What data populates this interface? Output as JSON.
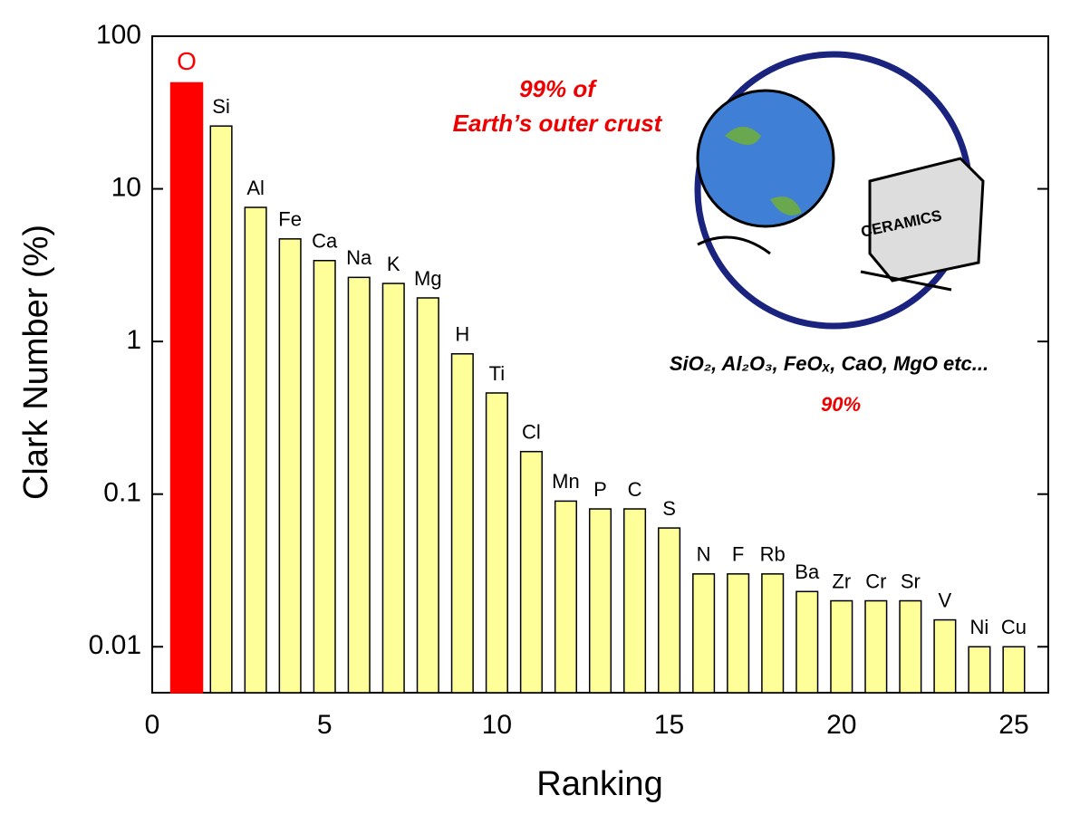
{
  "chart_data": {
    "type": "bar",
    "x_label": "Ranking",
    "y_label": "Clark Number (%)",
    "x": [
      1,
      2,
      3,
      4,
      5,
      6,
      7,
      8,
      9,
      10,
      11,
      12,
      13,
      14,
      15,
      16,
      17,
      18,
      19,
      20,
      21,
      22,
      23,
      24,
      25
    ],
    "categories": [
      "O",
      "Si",
      "Al",
      "Fe",
      "Ca",
      "Na",
      "K",
      "Mg",
      "H",
      "Ti",
      "Cl",
      "Mn",
      "P",
      "C",
      "S",
      "N",
      "F",
      "Rb",
      "Ba",
      "Zr",
      "Cr",
      "Sr",
      "V",
      "Ni",
      "Cu"
    ],
    "values": [
      49.5,
      25.8,
      7.56,
      4.7,
      3.39,
      2.63,
      2.4,
      1.93,
      0.83,
      0.46,
      0.19,
      0.09,
      0.08,
      0.08,
      0.06,
      0.03,
      0.03,
      0.03,
      0.023,
      0.02,
      0.02,
      0.02,
      0.015,
      0.01,
      0.01
    ],
    "colors": [
      "#ff0000",
      "#ffff99",
      "#ffff99",
      "#ffff99",
      "#ffff99",
      "#ffff99",
      "#ffff99",
      "#ffff99",
      "#ffff99",
      "#ffff99",
      "#ffff99",
      "#ffff99",
      "#ffff99",
      "#ffff99",
      "#ffff99",
      "#ffff99",
      "#ffff99",
      "#ffff99",
      "#ffff99",
      "#ffff99",
      "#ffff99",
      "#ffff99",
      "#ffff99",
      "#ffff99",
      "#ffff99"
    ],
    "y_log": true,
    "xlim": [
      0,
      26
    ],
    "ylim": [
      0.005,
      100
    ],
    "xticks": [
      0,
      5,
      10,
      15,
      20,
      25
    ],
    "yticks": [
      100,
      10,
      1,
      0.1,
      0.01
    ],
    "annotations": [
      "99% of",
      "Earth’s outer crust",
      "SiO₂, Al₂O₃, FeOₓ, CaO, MgO etc...",
      "90%",
      "CERAMICS"
    ]
  }
}
